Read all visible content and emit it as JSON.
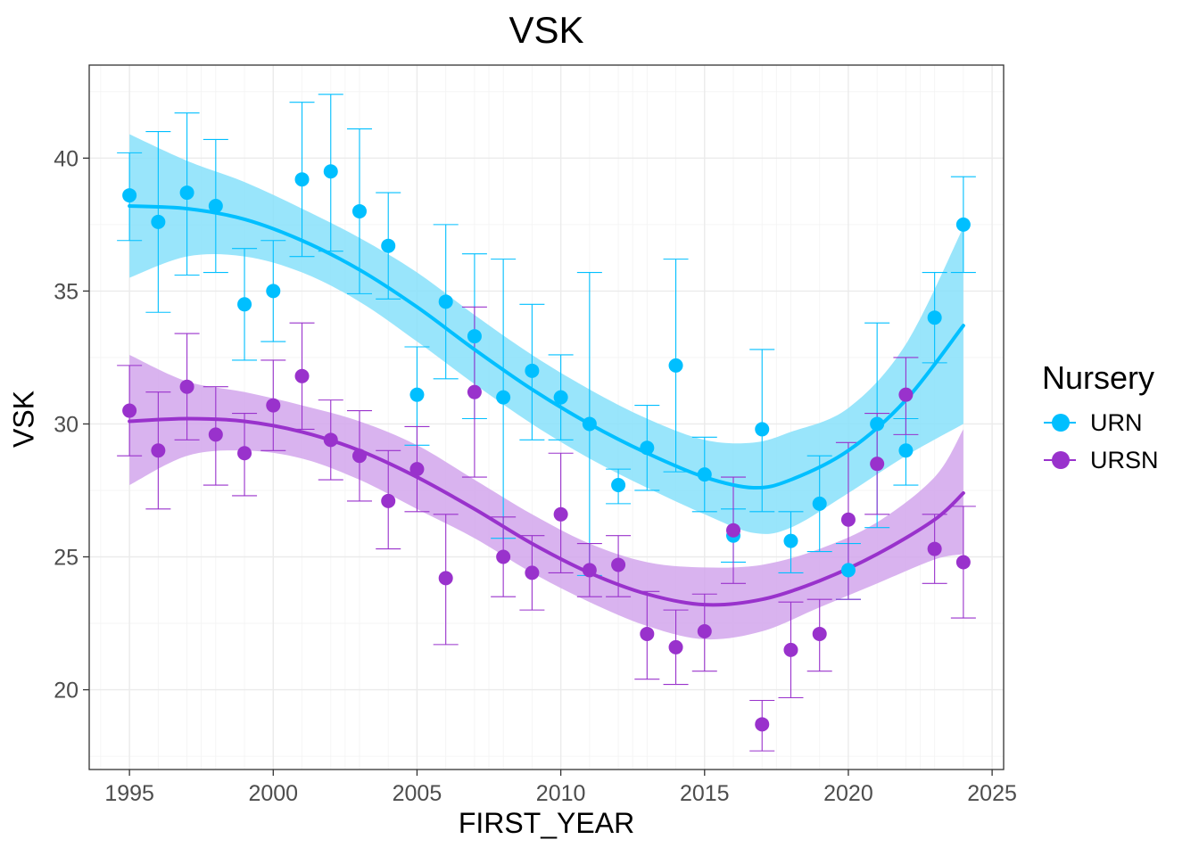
{
  "chart_data": {
    "type": "scatter",
    "title": "VSK",
    "xlabel": "FIRST_YEAR",
    "ylabel": "VSK",
    "xlim": [
      1993.6,
      2025.4
    ],
    "ylim": [
      17.0,
      43.5
    ],
    "x_ticks": [
      1995,
      2000,
      2005,
      2010,
      2015,
      2020,
      2025
    ],
    "y_ticks": [
      20,
      25,
      30,
      35,
      40
    ],
    "grid": true,
    "legend": {
      "title": "Nursery",
      "position": "right"
    },
    "series": [
      {
        "name": "URN",
        "color": "#00BFFF",
        "band_color": "#87E0FA",
        "points": [
          {
            "x": 1995,
            "y": 38.6,
            "lo": 36.9,
            "hi": 40.2
          },
          {
            "x": 1996,
            "y": 37.6,
            "lo": 34.2,
            "hi": 41.0
          },
          {
            "x": 1997,
            "y": 38.7,
            "lo": 35.6,
            "hi": 41.7
          },
          {
            "x": 1998,
            "y": 38.2,
            "lo": 35.7,
            "hi": 40.7
          },
          {
            "x": 1999,
            "y": 34.5,
            "lo": 32.4,
            "hi": 36.6
          },
          {
            "x": 2000,
            "y": 35.0,
            "lo": 33.1,
            "hi": 36.9
          },
          {
            "x": 2001,
            "y": 39.2,
            "lo": 36.3,
            "hi": 42.1
          },
          {
            "x": 2002,
            "y": 39.5,
            "lo": 36.5,
            "hi": 42.4
          },
          {
            "x": 2003,
            "y": 38.0,
            "lo": 34.9,
            "hi": 41.1
          },
          {
            "x": 2004,
            "y": 36.7,
            "lo": 34.7,
            "hi": 38.7
          },
          {
            "x": 2005,
            "y": 31.1,
            "lo": 29.2,
            "hi": 32.9
          },
          {
            "x": 2006,
            "y": 34.6,
            "lo": 31.7,
            "hi": 37.5
          },
          {
            "x": 2007,
            "y": 33.3,
            "lo": 30.2,
            "hi": 36.4
          },
          {
            "x": 2008,
            "y": 31.0,
            "lo": 25.7,
            "hi": 36.2
          },
          {
            "x": 2009,
            "y": 32.0,
            "lo": 29.4,
            "hi": 34.5
          },
          {
            "x": 2010,
            "y": 31.0,
            "lo": 29.4,
            "hi": 32.6
          },
          {
            "x": 2011,
            "y": 30.0,
            "lo": 24.3,
            "hi": 35.7
          },
          {
            "x": 2012,
            "y": 27.7,
            "lo": 27.0,
            "hi": 28.3
          },
          {
            "x": 2013,
            "y": 29.1,
            "lo": 27.5,
            "hi": 30.7
          },
          {
            "x": 2014,
            "y": 32.2,
            "lo": 28.2,
            "hi": 36.2
          },
          {
            "x": 2015,
            "y": 28.1,
            "lo": 26.7,
            "hi": 29.5
          },
          {
            "x": 2016,
            "y": 25.8,
            "lo": 24.8,
            "hi": 26.8
          },
          {
            "x": 2017,
            "y": 29.8,
            "lo": 26.7,
            "hi": 32.8
          },
          {
            "x": 2018,
            "y": 25.6,
            "lo": 24.4,
            "hi": 26.7
          },
          {
            "x": 2019,
            "y": 27.0,
            "lo": 25.2,
            "hi": 28.8
          },
          {
            "x": 2020,
            "y": 24.5,
            "lo": 23.4,
            "hi": 25.5
          },
          {
            "x": 2021,
            "y": 30.0,
            "lo": 26.1,
            "hi": 33.8
          },
          {
            "x": 2022,
            "y": 29.0,
            "lo": 27.7,
            "hi": 30.2
          },
          {
            "x": 2023,
            "y": 34.0,
            "lo": 32.3,
            "hi": 35.7
          },
          {
            "x": 2024,
            "y": 37.5,
            "lo": 35.7,
            "hi": 39.3
          }
        ],
        "smooth": {
          "x": [
            1995,
            1997,
            1999,
            2001,
            2003,
            2005,
            2007,
            2009,
            2011,
            2013,
            2015,
            2016.7,
            2018,
            2020,
            2022,
            2024
          ],
          "y": [
            38.2,
            38.1,
            37.7,
            36.9,
            35.8,
            34.4,
            32.8,
            31.3,
            30.0,
            28.9,
            28.0,
            27.6,
            27.9,
            29.0,
            30.9,
            33.7
          ],
          "lo": [
            35.5,
            36.3,
            36.3,
            35.7,
            34.6,
            33.1,
            31.5,
            30.0,
            28.7,
            27.6,
            26.6,
            25.9,
            26.1,
            27.4,
            28.8,
            30.0
          ],
          "hi": [
            40.9,
            39.9,
            39.1,
            38.1,
            37.0,
            35.7,
            34.1,
            32.6,
            31.3,
            30.2,
            29.4,
            29.3,
            29.7,
            30.6,
            33.0,
            37.4
          ]
        }
      },
      {
        "name": "URSN",
        "color": "#9932CC",
        "band_color": "#D2A6EC",
        "points": [
          {
            "x": 1995,
            "y": 30.5,
            "lo": 28.8,
            "hi": 32.2
          },
          {
            "x": 1996,
            "y": 29.0,
            "lo": 26.8,
            "hi": 31.2
          },
          {
            "x": 1997,
            "y": 31.4,
            "lo": 29.4,
            "hi": 33.4
          },
          {
            "x": 1998,
            "y": 29.6,
            "lo": 27.7,
            "hi": 31.4
          },
          {
            "x": 1999,
            "y": 28.9,
            "lo": 27.3,
            "hi": 30.4
          },
          {
            "x": 2000,
            "y": 30.7,
            "lo": 29.0,
            "hi": 32.4
          },
          {
            "x": 2001,
            "y": 31.8,
            "lo": 29.8,
            "hi": 33.8
          },
          {
            "x": 2002,
            "y": 29.4,
            "lo": 27.9,
            "hi": 30.9
          },
          {
            "x": 2003,
            "y": 28.8,
            "lo": 27.1,
            "hi": 30.5
          },
          {
            "x": 2004,
            "y": 27.1,
            "lo": 25.3,
            "hi": 29.0
          },
          {
            "x": 2005,
            "y": 28.3,
            "lo": 26.7,
            "hi": 29.9
          },
          {
            "x": 2006,
            "y": 24.2,
            "lo": 21.7,
            "hi": 26.6
          },
          {
            "x": 2007,
            "y": 31.2,
            "lo": 28.0,
            "hi": 34.4
          },
          {
            "x": 2008,
            "y": 25.0,
            "lo": 23.5,
            "hi": 26.5
          },
          {
            "x": 2009,
            "y": 24.4,
            "lo": 23.0,
            "hi": 25.8
          },
          {
            "x": 2010,
            "y": 26.6,
            "lo": 24.4,
            "hi": 28.9
          },
          {
            "x": 2011,
            "y": 24.5,
            "lo": 23.5,
            "hi": 25.5
          },
          {
            "x": 2012,
            "y": 24.7,
            "lo": 23.5,
            "hi": 25.8
          },
          {
            "x": 2013,
            "y": 22.1,
            "lo": 20.4,
            "hi": 23.7
          },
          {
            "x": 2014,
            "y": 21.6,
            "lo": 20.2,
            "hi": 23.0
          },
          {
            "x": 2015,
            "y": 22.2,
            "lo": 20.7,
            "hi": 23.6
          },
          {
            "x": 2016,
            "y": 26.0,
            "lo": 24.0,
            "hi": 28.0
          },
          {
            "x": 2017,
            "y": 18.7,
            "lo": 17.7,
            "hi": 19.6
          },
          {
            "x": 2018,
            "y": 21.5,
            "lo": 19.7,
            "hi": 23.3
          },
          {
            "x": 2019,
            "y": 22.1,
            "lo": 20.7,
            "hi": 23.4
          },
          {
            "x": 2020,
            "y": 26.4,
            "lo": 23.4,
            "hi": 29.3
          },
          {
            "x": 2021,
            "y": 28.5,
            "lo": 26.6,
            "hi": 30.4
          },
          {
            "x": 2022,
            "y": 31.1,
            "lo": 29.6,
            "hi": 32.5
          },
          {
            "x": 2023,
            "y": 25.3,
            "lo": 24.0,
            "hi": 26.6
          },
          {
            "x": 2024,
            "y": 24.8,
            "lo": 22.7,
            "hi": 26.9
          }
        ],
        "smooth": {
          "x": [
            1995,
            1997,
            1999,
            2001,
            2003,
            2005,
            2007,
            2009,
            2011,
            2013,
            2015,
            2017,
            2019,
            2021,
            2023,
            2024
          ],
          "y": [
            30.1,
            30.2,
            30.1,
            29.7,
            29.0,
            28.0,
            26.8,
            25.5,
            24.4,
            23.6,
            23.2,
            23.4,
            24.1,
            25.1,
            26.4,
            27.4
          ],
          "lo": [
            27.7,
            28.8,
            29.0,
            28.7,
            27.9,
            26.8,
            25.7,
            24.4,
            23.3,
            22.4,
            21.9,
            22.2,
            23.1,
            24.0,
            24.9,
            25.1
          ],
          "hi": [
            32.6,
            31.6,
            31.2,
            30.7,
            30.1,
            29.2,
            27.9,
            26.6,
            25.5,
            24.8,
            24.6,
            24.7,
            25.3,
            26.3,
            28.0,
            29.8
          ]
        }
      }
    ]
  }
}
